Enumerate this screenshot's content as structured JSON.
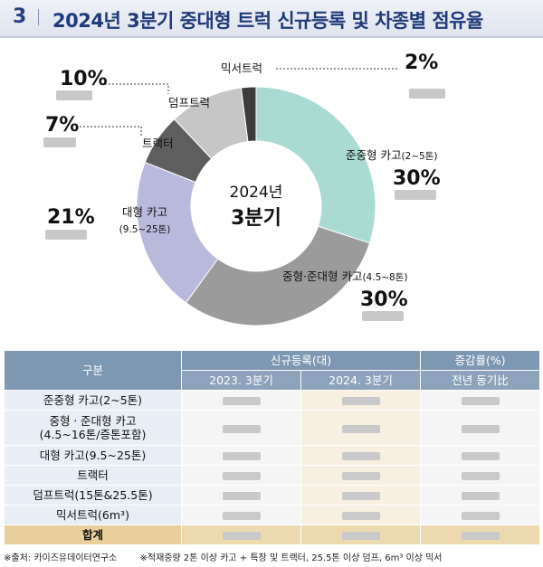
{
  "header": {
    "number": "3",
    "title": "2024년 3분기 중대형 트럭 신규등록 및 차종별 점유율"
  },
  "chart_data": {
    "type": "pie",
    "center_year": "2024년",
    "center_quarter": "3분기",
    "slices": [
      {
        "name": "준중형 카고",
        "name_sub": "(2~5톤)",
        "value": 30,
        "pct_label": "30%",
        "color": "#a9dbd2"
      },
      {
        "name": "중형·준대형 카고",
        "name_sub": "(4.5~8톤)",
        "value": 30,
        "pct_label": "30%",
        "color": "#9b9b9b"
      },
      {
        "name": "대형 카고",
        "name_sub": "(9.5~25톤)",
        "value": 21,
        "pct_label": "21%",
        "color": "#b9b9dc"
      },
      {
        "name": "트랙터",
        "name_sub": "",
        "value": 7,
        "pct_label": "7%",
        "color": "#5e5e5e"
      },
      {
        "name": "덤프트럭",
        "name_sub": "",
        "value": 10,
        "pct_label": "10%",
        "color": "#c6c6c6"
      },
      {
        "name": "믹서트럭",
        "name_sub": "",
        "value": 2,
        "pct_label": "2%",
        "color": "#3c3c3c"
      }
    ]
  },
  "table": {
    "col_group": "구분",
    "reg_header": "신규등록(대)",
    "rate_header": "증감률(%)",
    "sub_2023": "2023. 3분기",
    "sub_2024": "2024. 3분기",
    "sub_rate": "전년 동기比",
    "rows": [
      {
        "line1": "준중형 카고(2~5톤)",
        "line2": ""
      },
      {
        "line1": "중형ㆍ준대형 카고",
        "line2": "(4.5~16톤/증톤포함)"
      },
      {
        "line1": "대형 카고(9.5~25톤)",
        "line2": ""
      },
      {
        "line1": "트랙터",
        "line2": ""
      },
      {
        "line1": "덤프트럭(15톤&25.5톤)",
        "line2": ""
      },
      {
        "line1": "믹서트럭(6m³)",
        "line2": ""
      }
    ],
    "total_label": "합계"
  },
  "footnote": {
    "source": "※출처: 카이즈유데이터연구소",
    "note": "※적재중량 2톤 이상 카고 + 특장 및 트랙터, 25.5톤 이상 덤프, 6m³ 이상 믹서"
  }
}
